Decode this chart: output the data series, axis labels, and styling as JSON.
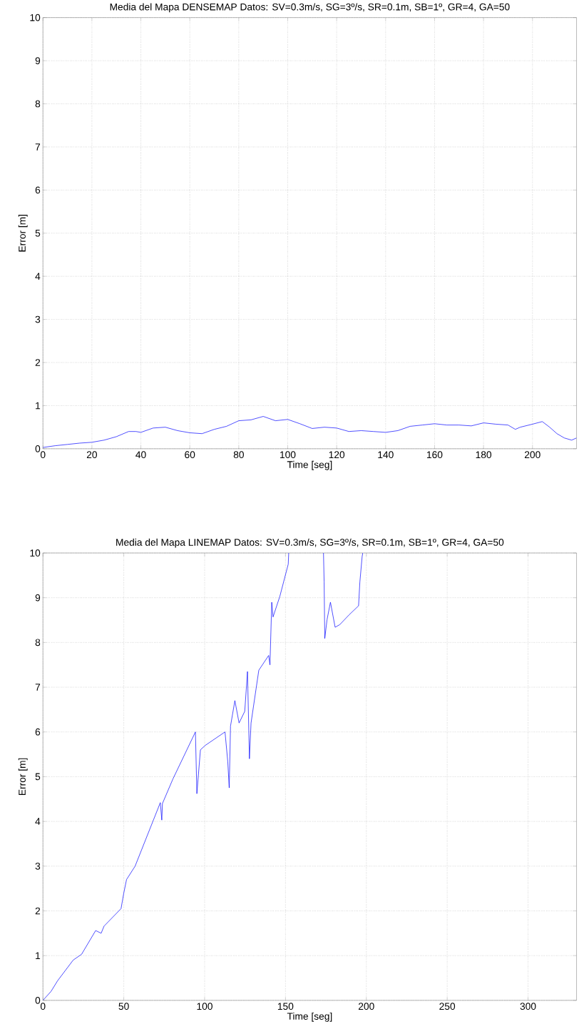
{
  "chart_data": [
    {
      "type": "line",
      "title": "Media del Mapa DENSEMAP Datos: SV=0.3m/s, SG=3º/s, SR=0.1m, SB=1º, GR=4, GA=50",
      "xlabel": "Time [seg]",
      "ylabel": "Error [m]",
      "x": [
        0,
        5,
        10,
        15,
        20,
        25,
        30,
        35,
        38,
        40,
        45,
        50,
        55,
        60,
        65,
        70,
        75,
        80,
        85,
        90,
        95,
        100,
        105,
        110,
        115,
        120,
        125,
        130,
        135,
        140,
        145,
        150,
        155,
        160,
        165,
        170,
        175,
        180,
        185,
        190,
        193,
        195,
        200,
        204,
        207,
        210,
        213,
        216,
        218
      ],
      "series": [
        {
          "color": "#0000ff",
          "values": [
            0.03,
            0.07,
            0.1,
            0.13,
            0.15,
            0.2,
            0.28,
            0.4,
            0.4,
            0.38,
            0.48,
            0.5,
            0.42,
            0.37,
            0.35,
            0.45,
            0.52,
            0.65,
            0.67,
            0.75,
            0.65,
            0.68,
            0.58,
            0.47,
            0.5,
            0.48,
            0.4,
            0.42,
            0.4,
            0.38,
            0.42,
            0.52,
            0.55,
            0.58,
            0.55,
            0.55,
            0.53,
            0.6,
            0.57,
            0.55,
            0.45,
            0.5,
            0.57,
            0.63,
            0.5,
            0.35,
            0.25,
            0.2,
            0.25
          ]
        }
      ],
      "xlim": [
        0,
        218
      ],
      "ylim": [
        0,
        10
      ],
      "xticks": [
        0,
        20,
        40,
        60,
        80,
        100,
        120,
        140,
        160,
        180,
        200
      ],
      "yticks": [
        0,
        1,
        2,
        3,
        4,
        5,
        6,
        7,
        8,
        9,
        10
      ],
      "grid": true
    },
    {
      "type": "line",
      "title": "Media del Mapa LINEMAP Datos: SV=0.3m/s, SG=3º/s, SR=0.1m, SB=1º, GR=4, GA=50",
      "xlabel": "Time [seg]",
      "ylabel": "Error [m]",
      "x": [
        0,
        5,
        9.1,
        18.7,
        23.9,
        32.6,
        36,
        37.8,
        48.3,
        50,
        51.7,
        57,
        72.6,
        73.5,
        73.9,
        80.4,
        94.3,
        95.2,
        97.4,
        100.4,
        112.6,
        114.3,
        115.2,
        116,
        118.7,
        121.3,
        124.8,
        126.5,
        127.7,
        128.7,
        133.5,
        139.6,
        140.4,
        141.5,
        142.3,
        146.5,
        151.7,
        152,
        163,
        173.5,
        173.9,
        174.3,
        175.7,
        177.8,
        180.7,
        183.6,
        189.4,
        195.2,
        196,
        197.4,
        197.8
      ],
      "series": [
        {
          "color": "#0000ff",
          "values": [
            0,
            0.2,
            0.44,
            0.9,
            1.03,
            1.56,
            1.5,
            1.66,
            2.05,
            2.4,
            2.7,
            3.0,
            4.42,
            4.03,
            4.4,
            4.95,
            6.0,
            4.62,
            5.6,
            5.7,
            6.0,
            5.34,
            4.75,
            6.13,
            6.7,
            6.2,
            6.46,
            7.35,
            5.4,
            6.2,
            7.38,
            7.71,
            7.5,
            8.9,
            8.57,
            9.03,
            9.75,
            10,
            null,
            10,
            9.35,
            8.09,
            8.51,
            8.9,
            8.34,
            8.4,
            8.62,
            8.82,
            9.35,
            9.92,
            10
          ]
        }
      ],
      "xlim": [
        0,
        330
      ],
      "ylim": [
        0,
        10
      ],
      "xticks": [
        0,
        50,
        100,
        150,
        200,
        250,
        300
      ],
      "yticks": [
        0,
        1,
        2,
        3,
        4,
        5,
        6,
        7,
        8,
        9,
        10
      ],
      "grid": true
    }
  ]
}
